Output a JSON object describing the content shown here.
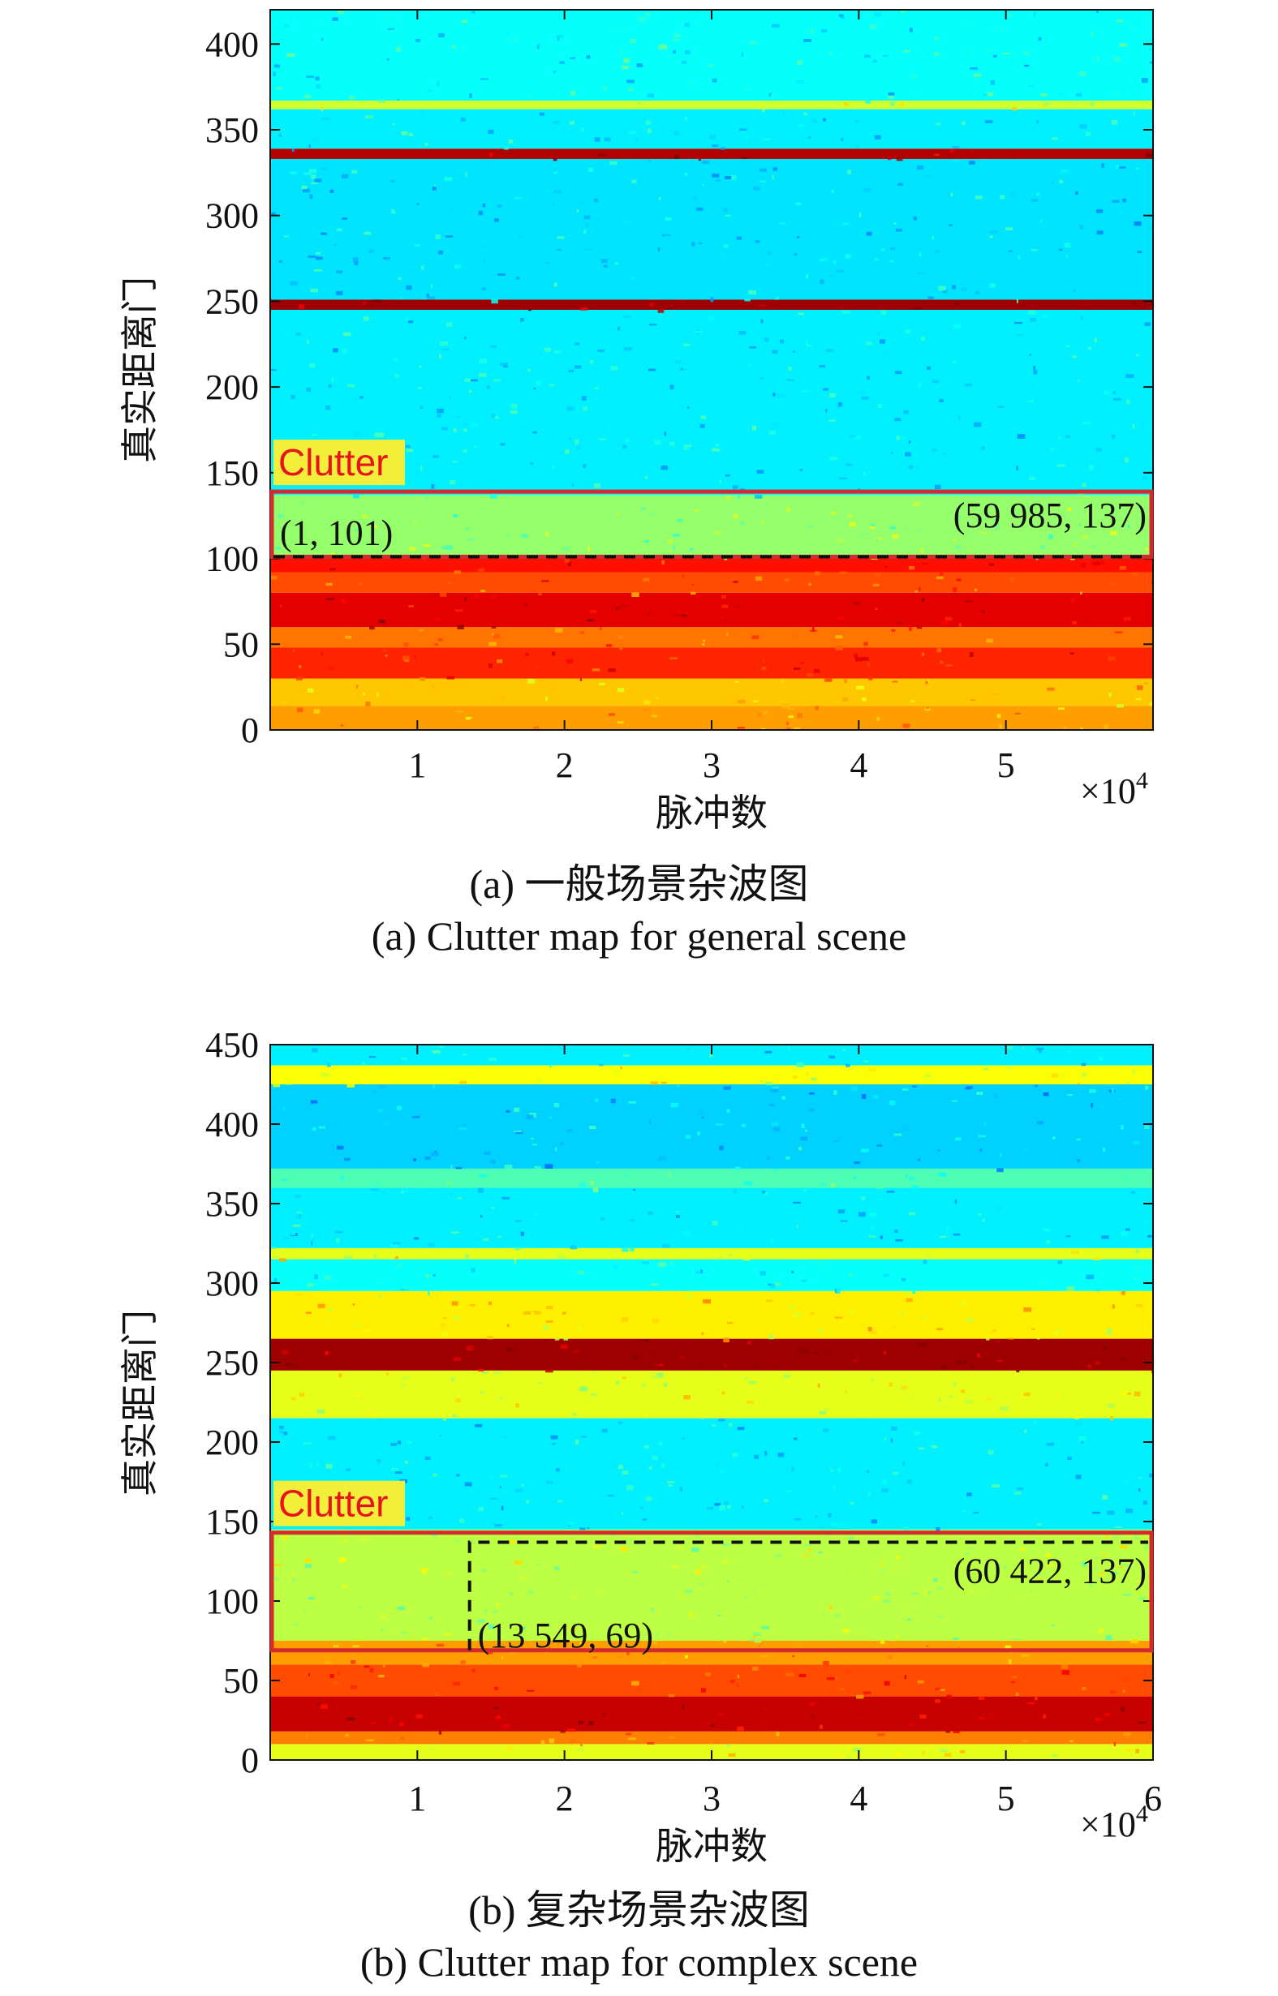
{
  "chart_data": [
    {
      "type": "heatmap",
      "title": "",
      "xlabel": "脉冲数",
      "ylabel": "真实距离门",
      "x_multiplier": "×10",
      "x_multiplier_exp": "4",
      "xlim": [
        0,
        6
      ],
      "ylim": [
        0,
        420
      ],
      "x_ticks": [
        1,
        2,
        3,
        4,
        5
      ],
      "y_ticks": [
        0,
        50,
        100,
        150,
        200,
        250,
        300,
        350,
        400
      ],
      "colormap": "jet",
      "bands": [
        {
          "y0": 0,
          "y1": 14,
          "level": 0.72
        },
        {
          "y0": 14,
          "y1": 30,
          "level": 0.68
        },
        {
          "y0": 30,
          "y1": 48,
          "level": 0.84
        },
        {
          "y0": 48,
          "y1": 60,
          "level": 0.76
        },
        {
          "y0": 60,
          "y1": 80,
          "level": 0.9
        },
        {
          "y0": 80,
          "y1": 92,
          "level": 0.8
        },
        {
          "y0": 92,
          "y1": 101,
          "level": 0.86
        },
        {
          "y0": 101,
          "y1": 137,
          "level": 0.52
        },
        {
          "y0": 137,
          "y1": 245,
          "level": 0.36
        },
        {
          "y0": 245,
          "y1": 251,
          "level": 0.97
        },
        {
          "y0": 251,
          "y1": 333,
          "level": 0.35
        },
        {
          "y0": 333,
          "y1": 339,
          "level": 0.95
        },
        {
          "y0": 339,
          "y1": 362,
          "level": 0.36
        },
        {
          "y0": 362,
          "y1": 367,
          "level": 0.58
        },
        {
          "y0": 367,
          "y1": 420,
          "level": 0.38
        }
      ],
      "annotations": {
        "label": "Clutter",
        "label_color": "#e8141b",
        "label_bg": "#f2ee3a",
        "box_color": "#d42a2f",
        "box": {
          "x0": 0,
          "x1": 6,
          "y0": 101,
          "y1": 139
        },
        "dashed_box": {
          "x0": 0,
          "x1": 6,
          "y0": 101,
          "y1": 101
        },
        "point_left": {
          "text": "(1, 101)",
          "x": 1,
          "y": 101
        },
        "point_right": {
          "text": "(59 985, 137)",
          "x": 59985,
          "y": 137
        }
      },
      "caption_cn": "(a) 一般场景杂波图",
      "caption_en": "(a) Clutter map for general scene"
    },
    {
      "type": "heatmap",
      "title": "",
      "xlabel": "脉冲数",
      "ylabel": "真实距离门",
      "x_multiplier": "×10",
      "x_multiplier_exp": "4",
      "xlim": [
        0,
        6
      ],
      "ylim": [
        0,
        450
      ],
      "x_ticks": [
        1,
        2,
        3,
        4,
        5,
        6
      ],
      "y_ticks": [
        0,
        50,
        100,
        150,
        200,
        250,
        300,
        350,
        400,
        450
      ],
      "colormap": "jet",
      "bands": [
        {
          "y0": 0,
          "y1": 10,
          "level": 0.6
        },
        {
          "y0": 10,
          "y1": 18,
          "level": 0.75
        },
        {
          "y0": 18,
          "y1": 40,
          "level": 0.93
        },
        {
          "y0": 40,
          "y1": 60,
          "level": 0.8
        },
        {
          "y0": 60,
          "y1": 75,
          "level": 0.72
        },
        {
          "y0": 75,
          "y1": 145,
          "level": 0.56
        },
        {
          "y0": 145,
          "y1": 215,
          "level": 0.36
        },
        {
          "y0": 215,
          "y1": 245,
          "level": 0.6
        },
        {
          "y0": 245,
          "y1": 265,
          "level": 0.97
        },
        {
          "y0": 265,
          "y1": 295,
          "level": 0.64
        },
        {
          "y0": 295,
          "y1": 315,
          "level": 0.38
        },
        {
          "y0": 315,
          "y1": 322,
          "level": 0.6
        },
        {
          "y0": 322,
          "y1": 360,
          "level": 0.36
        },
        {
          "y0": 360,
          "y1": 372,
          "level": 0.45
        },
        {
          "y0": 372,
          "y1": 425,
          "level": 0.33
        },
        {
          "y0": 425,
          "y1": 437,
          "level": 0.62
        },
        {
          "y0": 437,
          "y1": 450,
          "level": 0.36
        }
      ],
      "annotations": {
        "label": "Clutter",
        "label_color": "#e8141b",
        "label_bg": "#f2ee3a",
        "box_color": "#d42a2f",
        "box": {
          "x0": 0,
          "x1": 6,
          "y0": 69,
          "y1": 143
        },
        "dashed_box": {
          "x0": 1.3549,
          "x1": 6.0422,
          "y0": 69,
          "y1": 137
        },
        "point_left": {
          "text": "(13 549, 69)",
          "x": 13549,
          "y": 69
        },
        "point_right": {
          "text": "(60 422, 137)",
          "x": 60422,
          "y": 137
        }
      },
      "caption_cn": "(b) 复杂场景杂波图",
      "caption_en": "(b) Clutter map for complex scene"
    }
  ]
}
